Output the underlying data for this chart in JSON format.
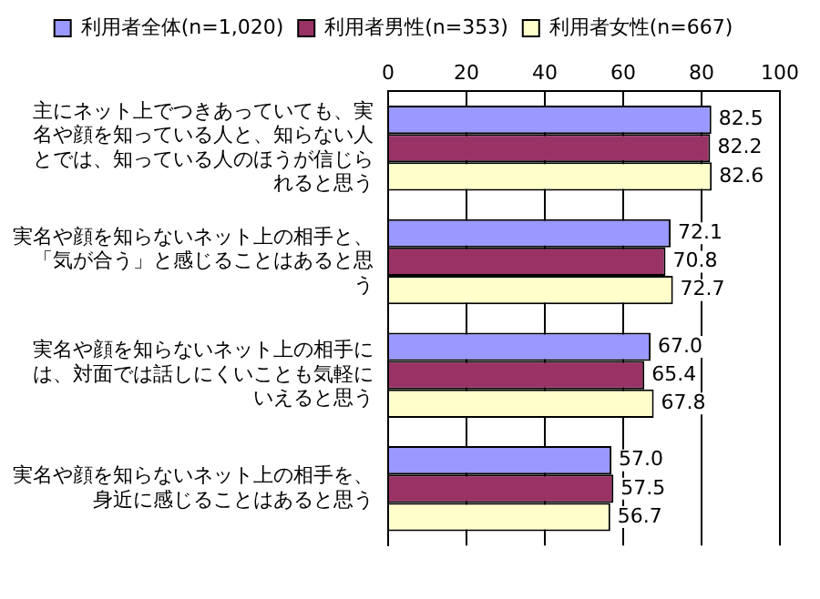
{
  "chart_data": {
    "type": "bar",
    "orientation": "horizontal",
    "categories": [
      "主にネット上でつきあっていても、実名や顔を知っている人と、知らない人とでは、知っている人のほうが信じられると思う",
      "実名や顔を知らないネット上の相手と、「気が合う」と感じることはあると思う",
      "実名や顔を知らないネット上の相手には、対面では話しにくいことも気軽にいえると思う",
      "実名や顔を知らないネット上の相手を、身近に感じることはあると思う"
    ],
    "series": [
      {
        "name": "利用者全体(n=1,020)",
        "color": "#9999ff",
        "values": [
          82.5,
          72.1,
          67.0,
          57.0
        ],
        "value_labels": [
          "82.5",
          "72.1",
          "67.0",
          "57.0"
        ]
      },
      {
        "name": "利用者男性(n=353)",
        "color": "#993366",
        "values": [
          82.2,
          70.8,
          65.4,
          57.5
        ],
        "value_labels": [
          "82.2",
          "70.8",
          "65.4",
          "57.5"
        ]
      },
      {
        "name": "利用者女性(n=667)",
        "color": "#ffffcc",
        "values": [
          82.6,
          72.7,
          67.8,
          56.7
        ],
        "value_labels": [
          "82.6",
          "72.7",
          "67.8",
          "56.7"
        ]
      }
    ],
    "xlim": [
      0,
      100
    ],
    "xticks": [
      0,
      20,
      40,
      60,
      80,
      100
    ],
    "grid": "x",
    "legend": "top"
  }
}
